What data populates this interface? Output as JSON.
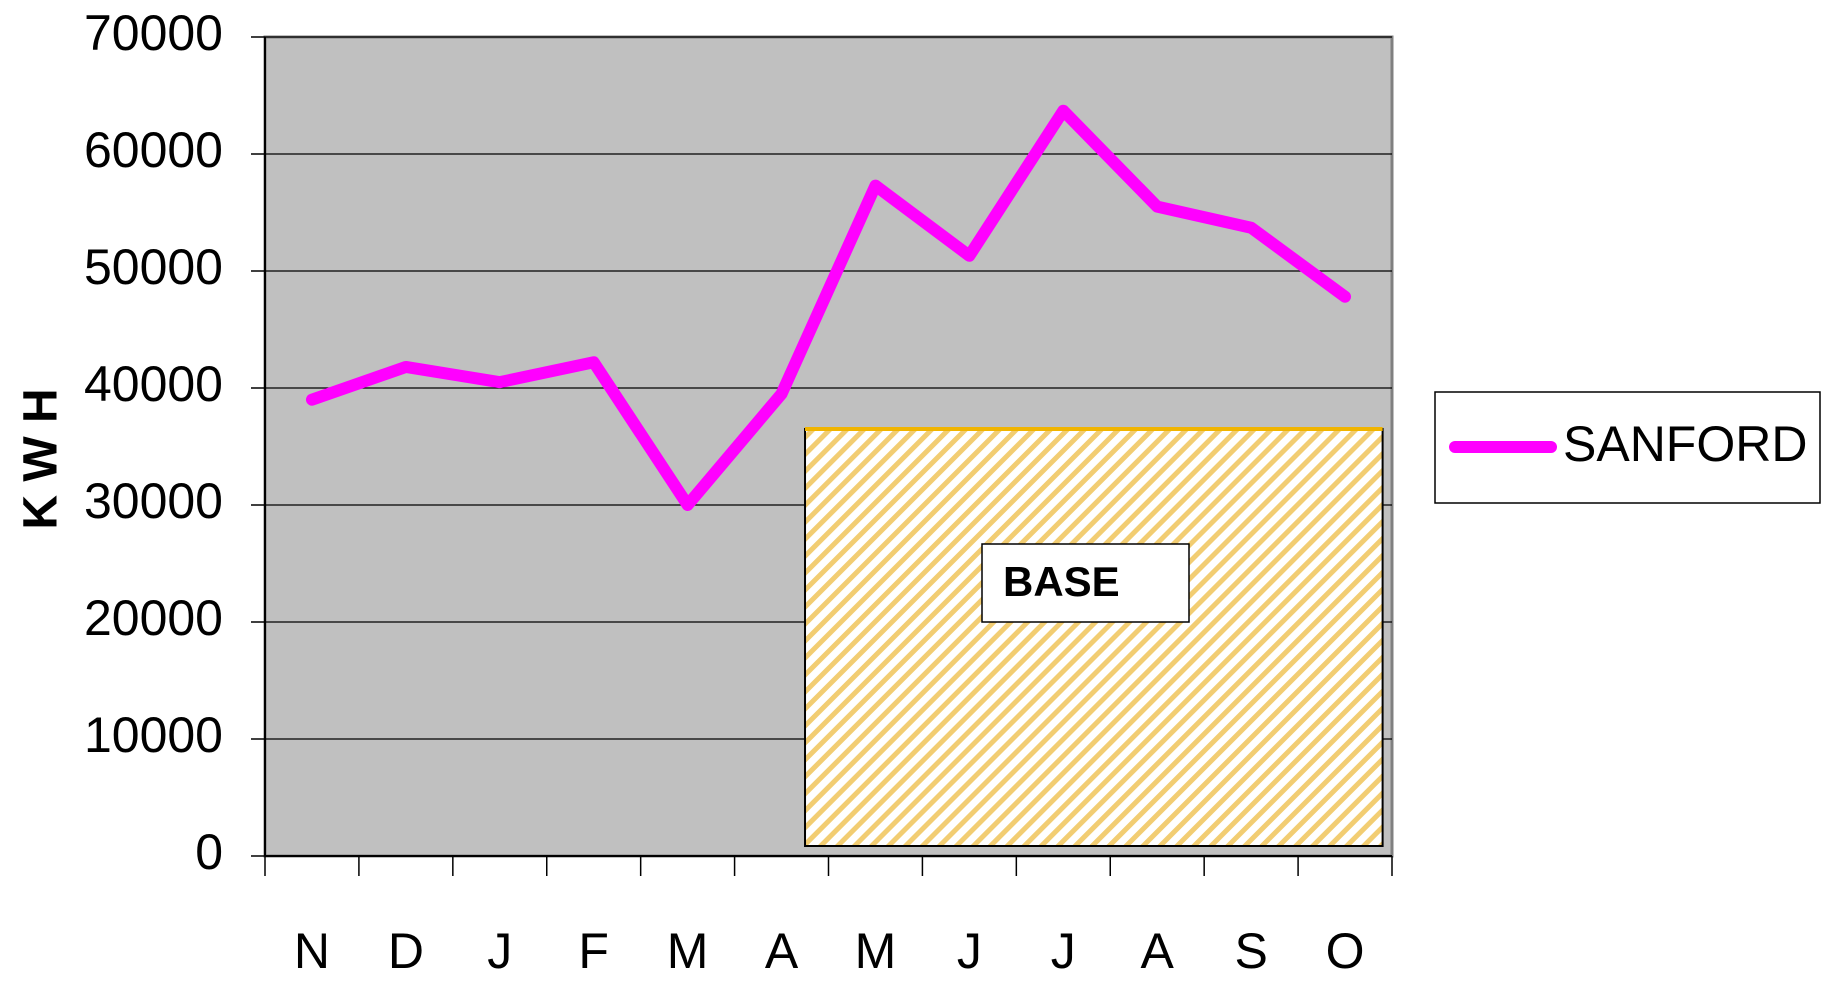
{
  "chart_data": {
    "type": "line",
    "y_label": "K W H",
    "categories": [
      "N",
      "D",
      "J",
      "F",
      "M",
      "A",
      "M",
      "J",
      "J",
      "A",
      "S",
      "O"
    ],
    "series": [
      {
        "name": "SANFORD",
        "color": "#ff00ff",
        "values": [
          39000,
          41800,
          40500,
          42200,
          30000,
          39500,
          57300,
          51300,
          63700,
          55500,
          53700,
          47800
        ]
      }
    ],
    "ylim": [
      0,
      70000
    ],
    "yticks": [
      0,
      10000,
      20000,
      30000,
      40000,
      50000,
      60000,
      70000
    ],
    "grid": true,
    "legend": "right",
    "annotation": {
      "label": "BASE",
      "value": 36500
    }
  }
}
